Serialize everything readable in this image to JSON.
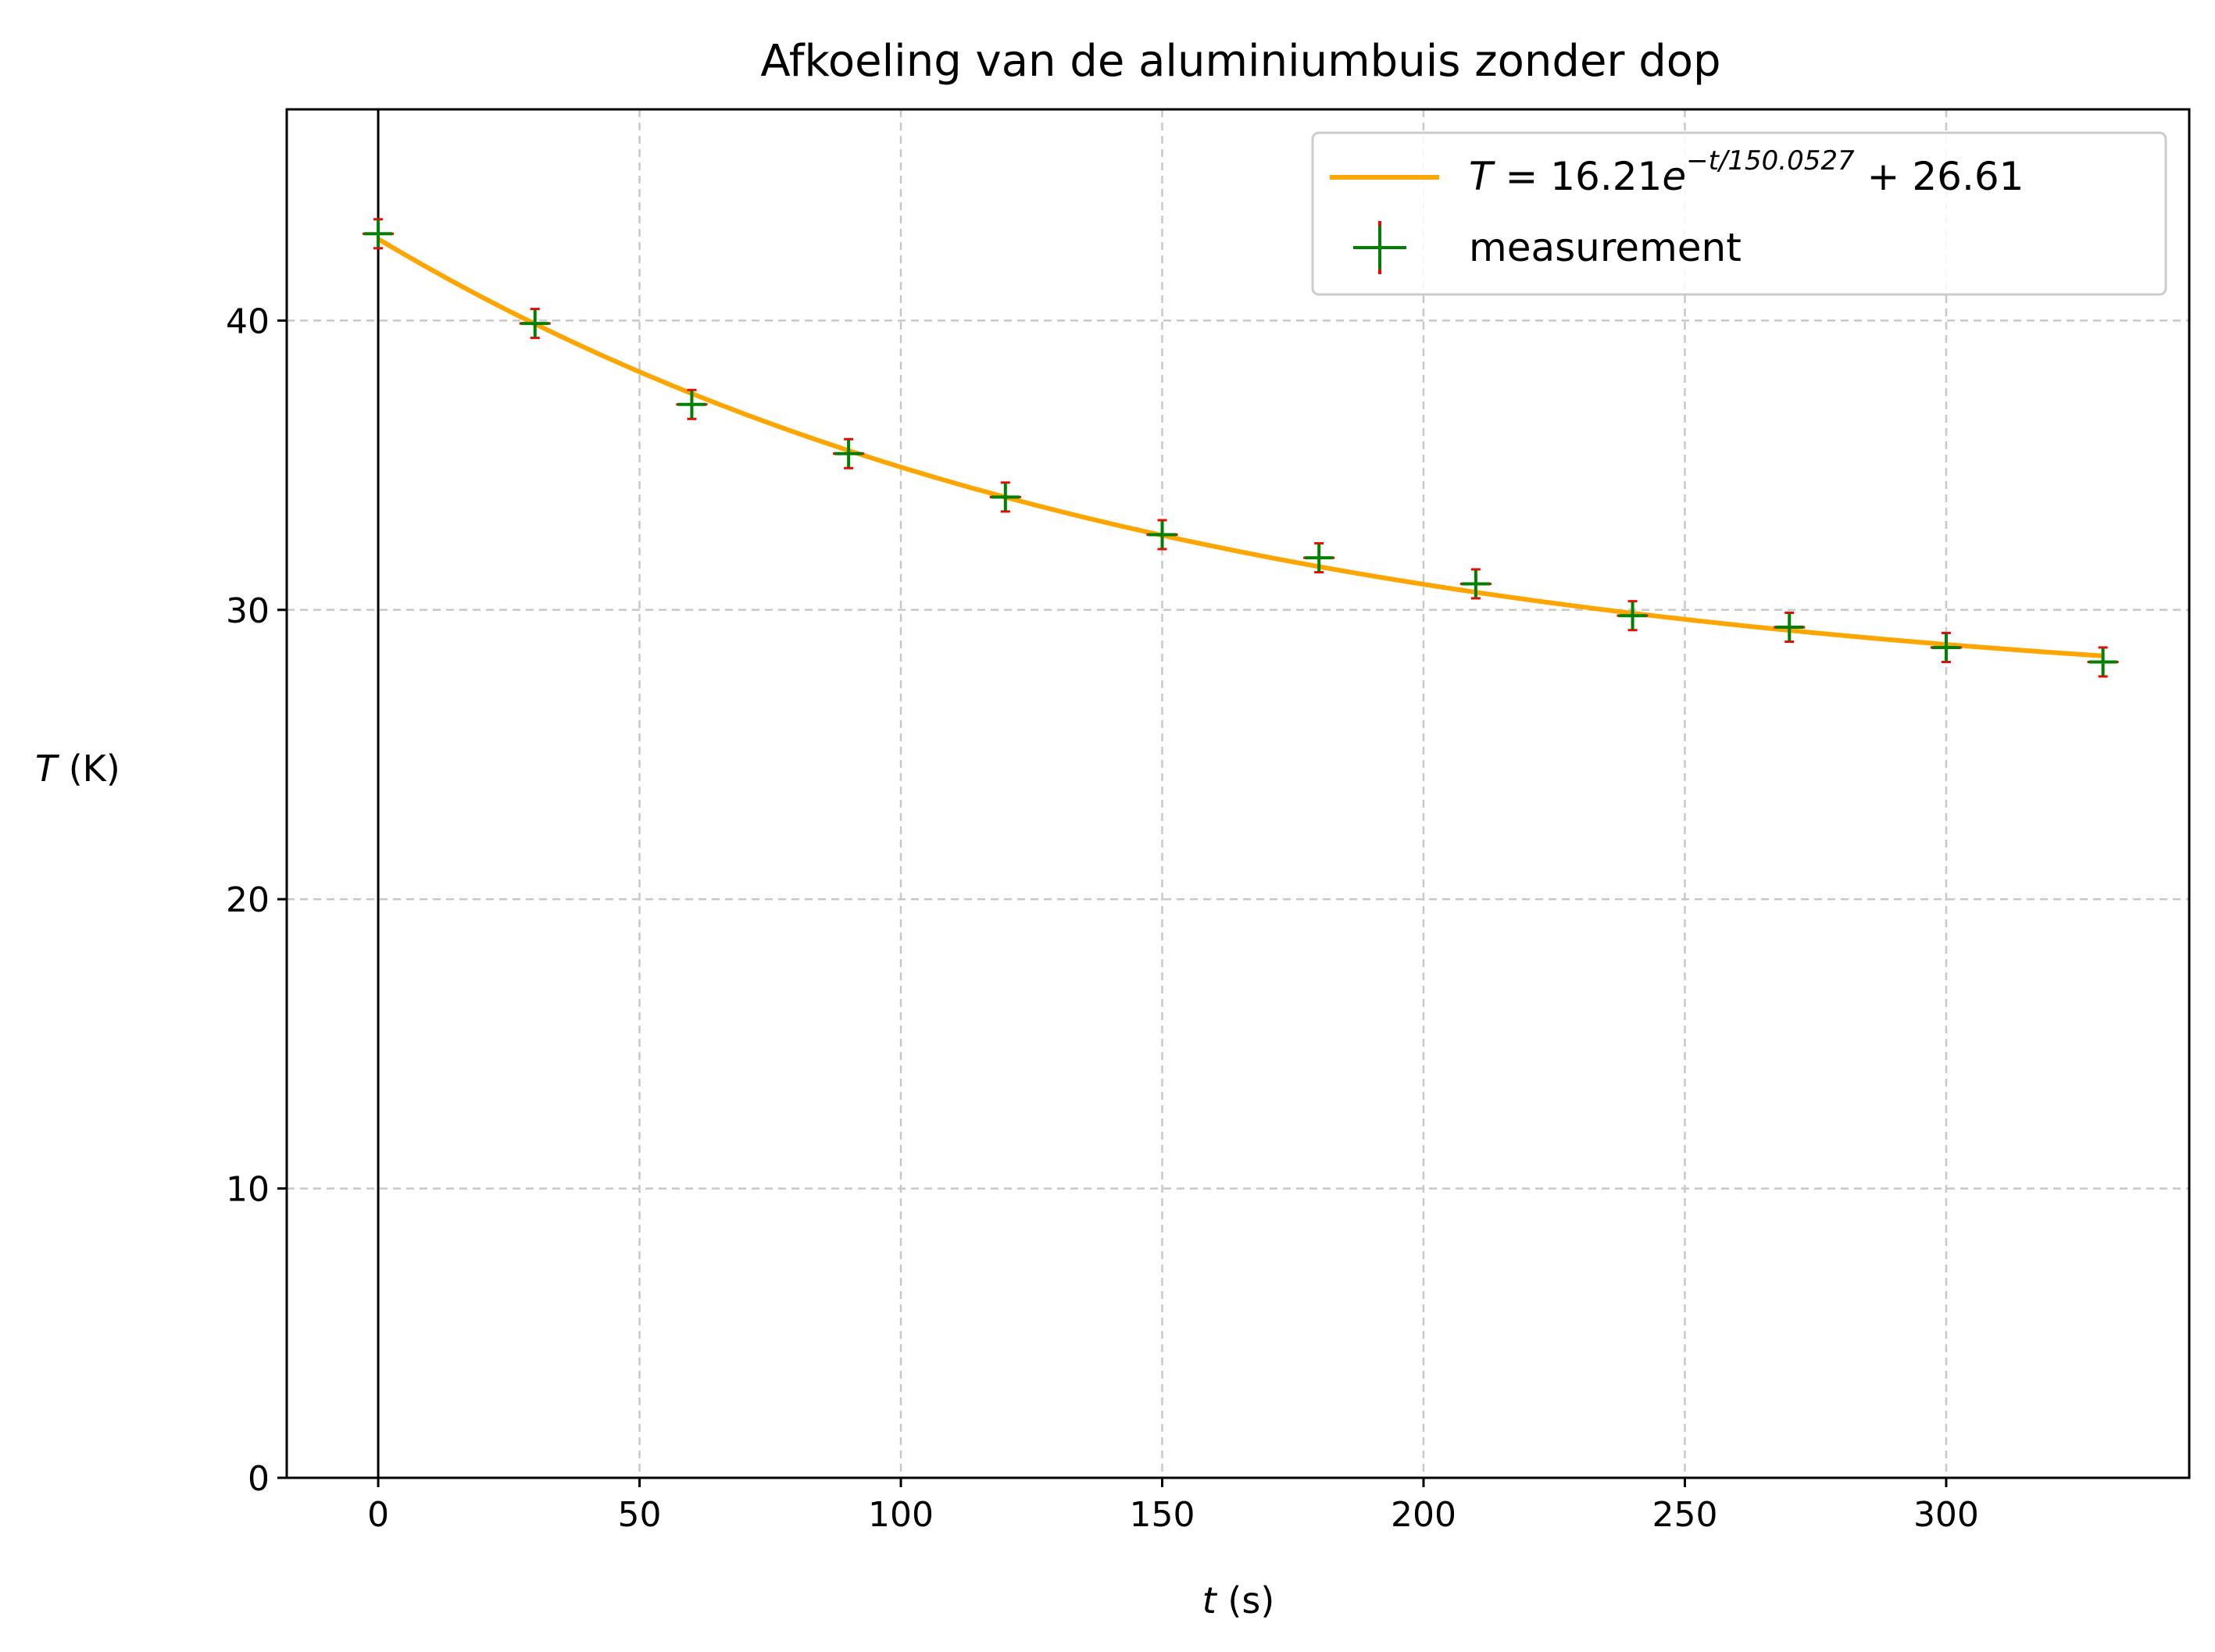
{
  "chart_data": {
    "type": "scatter",
    "title": "Afkoeling van de aluminiumbuis zonder dop",
    "xlabel_var": "t",
    "xlabel_unit": " (s)",
    "ylabel_var": "T",
    "ylabel_unit": " (K)",
    "xlim": [
      -17.5,
      346.5
    ],
    "ylim": [
      0,
      47.3
    ],
    "xticks": [
      0,
      50,
      100,
      150,
      200,
      250,
      300
    ],
    "yticks": [
      0,
      10,
      20,
      30,
      40
    ],
    "grid": true,
    "legend_position": "upper-right",
    "fit": {
      "name_parts": {
        "lhs": "T",
        "eq": " = 16.21",
        "e": "e",
        "exponent": "−t/150.0527",
        "rest": " + 26.61"
      },
      "amplitude": 16.21,
      "tau": 150.0527,
      "offset": 26.61,
      "t_range": [
        0,
        330
      ],
      "color": "#ffa500"
    },
    "measurements": {
      "name": "measurement",
      "marker_color": "#008000",
      "errorbar_color": "#ff0000",
      "x_error": 3,
      "y_error": 0.5,
      "x": [
        0,
        30,
        60,
        90,
        120,
        150,
        180,
        210,
        240,
        270,
        300,
        330
      ],
      "y": [
        43.0,
        39.9,
        37.1,
        35.4,
        33.9,
        32.6,
        31.8,
        30.9,
        29.8,
        29.4,
        28.7,
        28.2
      ]
    },
    "vertical_line": {
      "x": 0,
      "color": "#000000"
    }
  }
}
